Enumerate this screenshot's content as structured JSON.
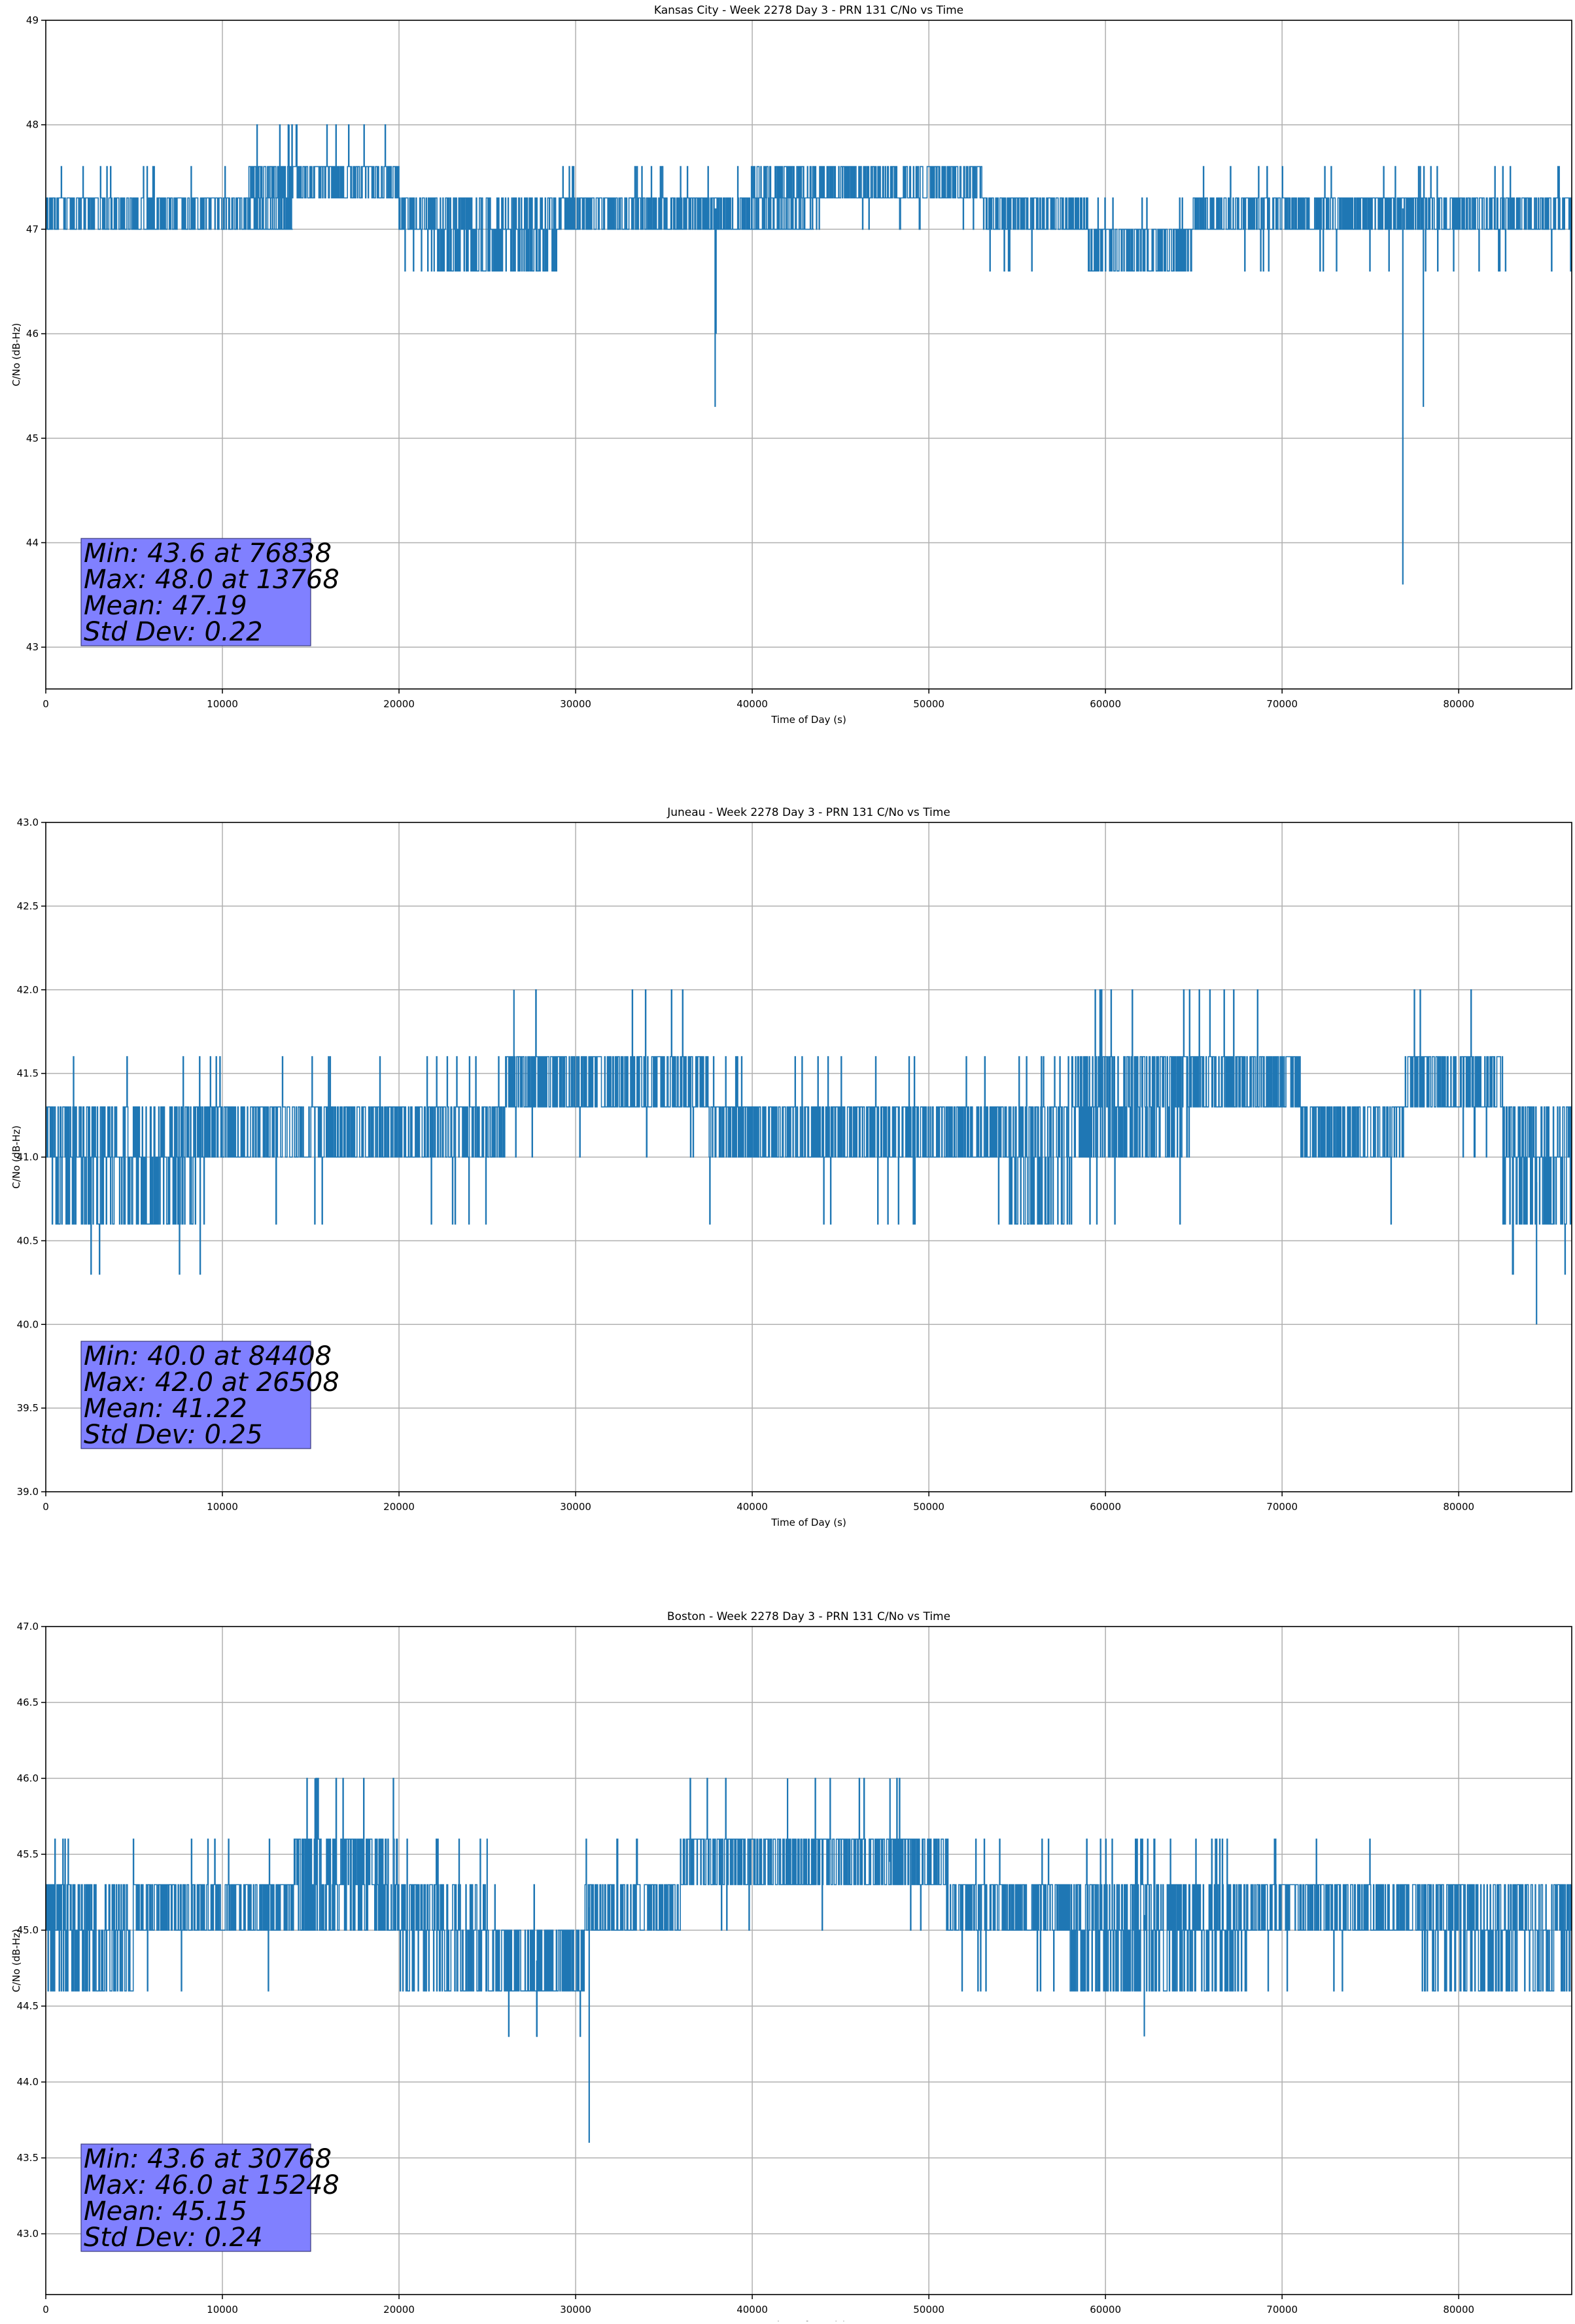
{
  "chart_data": [
    {
      "type": "line",
      "title": "Kansas City - Week 2278 Day 3 - PRN 131 C/No vs Time",
      "xlabel": "Time of Day (s)",
      "ylabel": "C/No (dB-Hz)",
      "xlim": [
        0,
        86400
      ],
      "ylim": [
        42.6,
        49.0
      ],
      "xticks": [
        0,
        10000,
        20000,
        30000,
        40000,
        50000,
        60000,
        70000,
        80000
      ],
      "yticks": [
        43,
        44,
        45,
        46,
        47,
        48,
        49
      ],
      "ytick_decimals": 0,
      "grid": true,
      "line_color": "#1f77b4",
      "segments": [
        {
          "x": [
            0,
            14000
          ],
          "base": 47.2,
          "levels": [
            47.0,
            47.3
          ],
          "spikes": [
            47.6
          ]
        },
        {
          "x": [
            11500,
            20000
          ],
          "base": 47.5,
          "levels": [
            47.3,
            47.6
          ],
          "spikes": [
            48.0
          ]
        },
        {
          "x": [
            20000,
            22000
          ],
          "base": 47.2,
          "levels": [
            47.0,
            47.3
          ],
          "spikes": [
            46.6
          ]
        },
        {
          "x": [
            22000,
            29000
          ],
          "base": 46.8,
          "levels": [
            46.6,
            47.0,
            47.3
          ],
          "spikes": [
            46.6
          ]
        },
        {
          "x": [
            29000,
            43500
          ],
          "base": 47.2,
          "levels": [
            47.0,
            47.3
          ],
          "spikes": [
            47.6
          ]
        },
        {
          "x": [
            40000,
            53000
          ],
          "base": 47.45,
          "levels": [
            47.3,
            47.6
          ],
          "spikes": [
            47.0
          ]
        },
        {
          "x": [
            53000,
            59000
          ],
          "base": 47.2,
          "levels": [
            47.0,
            47.3
          ],
          "spikes": [
            46.6
          ]
        },
        {
          "x": [
            59000,
            65000
          ],
          "base": 46.85,
          "levels": [
            46.6,
            47.0
          ],
          "spikes": [
            47.3
          ]
        },
        {
          "x": [
            65000,
            86400
          ],
          "base": 47.2,
          "levels": [
            47.0,
            47.3
          ],
          "spikes": [
            47.6,
            46.6
          ]
        }
      ],
      "dips": [
        {
          "x": 37900,
          "y": 45.3
        },
        {
          "x": 37950,
          "y": 46.0
        },
        {
          "x": 76838,
          "y": 43.6
        },
        {
          "x": 78000,
          "y": 45.3
        },
        {
          "x": 13768,
          "y": 48.0
        }
      ],
      "stats": {
        "lines": [
          "Min: 43.6 at 76838",
          "Max: 48.0 at 13768",
          "Mean: 47.19",
          "Std Dev: 0.22"
        ],
        "box_color": "#8080ff"
      }
    },
    {
      "type": "line",
      "title": "Juneau - Week 2278 Day 3 - PRN 131 C/No vs Time",
      "xlabel": "Time of Day (s)",
      "ylabel": "C/No (dB-Hz)",
      "xlim": [
        0,
        86400
      ],
      "ylim": [
        39.0,
        43.0
      ],
      "xticks": [
        0,
        10000,
        20000,
        30000,
        40000,
        50000,
        60000,
        70000,
        80000
      ],
      "yticks": [
        39.0,
        39.5,
        40.0,
        40.5,
        41.0,
        41.5,
        42.0,
        42.5,
        43.0
      ],
      "ytick_decimals": 1,
      "grid": true,
      "line_color": "#1f77b4",
      "segments": [
        {
          "x": [
            0,
            8800
          ],
          "base": 40.85,
          "levels": [
            40.6,
            41.0,
            41.3
          ],
          "spikes": [
            41.6,
            40.3
          ]
        },
        {
          "x": [
            8800,
            26000
          ],
          "base": 41.2,
          "levels": [
            41.0,
            41.3
          ],
          "spikes": [
            41.6,
            40.6
          ]
        },
        {
          "x": [
            26000,
            37500
          ],
          "base": 41.4,
          "levels": [
            41.3,
            41.6
          ],
          "spikes": [
            41.0,
            42.0
          ]
        },
        {
          "x": [
            37500,
            54500
          ],
          "base": 41.2,
          "levels": [
            41.0,
            41.3
          ],
          "spikes": [
            41.6,
            40.6
          ]
        },
        {
          "x": [
            54500,
            58000
          ],
          "base": 41.1,
          "levels": [
            40.6,
            41.0,
            41.3
          ],
          "spikes": [
            41.6
          ]
        },
        {
          "x": [
            58000,
            65000
          ],
          "base": 41.3,
          "levels": [
            41.0,
            41.3,
            41.6
          ],
          "spikes": [
            42.0,
            40.6
          ]
        },
        {
          "x": [
            65000,
            71000
          ],
          "base": 41.45,
          "levels": [
            41.3,
            41.6
          ],
          "spikes": [
            42.0
          ]
        },
        {
          "x": [
            71000,
            77000
          ],
          "base": 41.2,
          "levels": [
            41.0,
            41.3
          ],
          "spikes": [
            41.6,
            40.6
          ]
        },
        {
          "x": [
            77000,
            82500
          ],
          "base": 41.4,
          "levels": [
            41.3,
            41.6
          ],
          "spikes": [
            42.0,
            41.0
          ]
        },
        {
          "x": [
            82500,
            86400
          ],
          "base": 40.85,
          "levels": [
            40.6,
            41.0,
            41.3
          ],
          "spikes": [
            40.3
          ]
        }
      ],
      "dips": [
        {
          "x": 84408,
          "y": 40.0
        },
        {
          "x": 26508,
          "y": 42.0
        }
      ],
      "stats": {
        "lines": [
          "Min: 40.0 at 84408",
          "Max: 42.0 at 26508",
          "Mean: 41.22",
          "Std Dev: 0.25"
        ],
        "box_color": "#8080ff"
      }
    },
    {
      "type": "line",
      "title": "Boston - Week 2278 Day 3 - PRN 131 C/No vs Time",
      "xlabel": "Time of Day (s)",
      "ylabel": "C/No (dB-Hz)",
      "xlim": [
        0,
        86400
      ],
      "ylim": [
        42.6,
        47.0
      ],
      "xticks": [
        0,
        10000,
        20000,
        30000,
        40000,
        50000,
        60000,
        70000,
        80000
      ],
      "yticks": [
        43.0,
        43.5,
        44.0,
        44.5,
        45.0,
        45.5,
        46.0,
        46.5,
        47.0
      ],
      "ytick_decimals": 1,
      "grid": true,
      "line_color": "#1f77b4",
      "segments": [
        {
          "x": [
            0,
            5000
          ],
          "base": 44.9,
          "levels": [
            44.6,
            45.0,
            45.3
          ],
          "spikes": [
            45.6
          ]
        },
        {
          "x": [
            5000,
            14000
          ],
          "base": 45.15,
          "levels": [
            45.0,
            45.3
          ],
          "spikes": [
            45.6,
            44.6
          ]
        },
        {
          "x": [
            14000,
            20000
          ],
          "base": 45.3,
          "levels": [
            45.0,
            45.3,
            45.6
          ],
          "spikes": [
            46.0
          ]
        },
        {
          "x": [
            20000,
            25000
          ],
          "base": 45.1,
          "levels": [
            44.6,
            45.0,
            45.3
          ],
          "spikes": [
            45.6
          ]
        },
        {
          "x": [
            25000,
            30500
          ],
          "base": 44.8,
          "levels": [
            44.6,
            45.0
          ],
          "spikes": [
            45.3,
            44.3
          ]
        },
        {
          "x": [
            30500,
            36000
          ],
          "base": 45.15,
          "levels": [
            45.0,
            45.3
          ],
          "spikes": [
            45.6
          ]
        },
        {
          "x": [
            36000,
            51000
          ],
          "base": 45.45,
          "levels": [
            45.3,
            45.6
          ],
          "spikes": [
            45.0,
            46.0
          ]
        },
        {
          "x": [
            51000,
            58000
          ],
          "base": 45.15,
          "levels": [
            45.0,
            45.3
          ],
          "spikes": [
            45.6,
            44.6
          ]
        },
        {
          "x": [
            58000,
            68000
          ],
          "base": 45.1,
          "levels": [
            44.6,
            45.0,
            45.3
          ],
          "spikes": [
            45.6
          ]
        },
        {
          "x": [
            68000,
            78000
          ],
          "base": 45.15,
          "levels": [
            45.0,
            45.3
          ],
          "spikes": [
            45.6,
            44.6
          ]
        },
        {
          "x": [
            78000,
            86400
          ],
          "base": 44.85,
          "levels": [
            44.6,
            45.0,
            45.3
          ],
          "spikes": [
            45.3
          ]
        }
      ],
      "dips": [
        {
          "x": 30768,
          "y": 43.6
        },
        {
          "x": 27800,
          "y": 44.3
        },
        {
          "x": 62200,
          "y": 44.3
        },
        {
          "x": 15248,
          "y": 46.0
        },
        {
          "x": 42000,
          "y": 46.0
        },
        {
          "x": 47800,
          "y": 46.0
        }
      ],
      "stats": {
        "lines": [
          "Min: 43.6 at 30768",
          "Max: 46.0 at 15248",
          "Mean: 45.15",
          "Std Dev: 0.24"
        ],
        "box_color": "#8080ff"
      }
    }
  ]
}
